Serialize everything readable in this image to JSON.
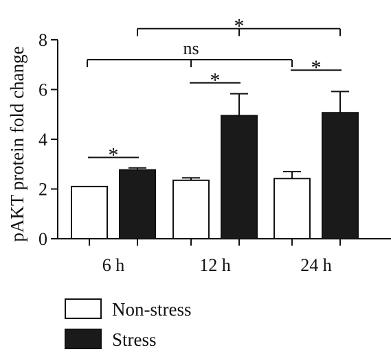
{
  "chart_data": {
    "type": "bar",
    "ylabel": "pAKT protein fold change",
    "xlabel": "",
    "ylim": [
      0,
      8
    ],
    "yticks": [
      0,
      2,
      4,
      6,
      8
    ],
    "grid": false,
    "legend_position": "bottom-left",
    "categories": [
      "6 h",
      "12 h",
      "24 h"
    ],
    "series": [
      {
        "name": "Non-stress",
        "values": [
          2.1,
          2.35,
          2.42
        ],
        "errors": [
          0,
          0.1,
          0.28
        ],
        "color": "#ffffff"
      },
      {
        "name": "Stress",
        "values": [
          2.77,
          4.95,
          5.07
        ],
        "errors": [
          0.08,
          0.88,
          0.85
        ],
        "color": "#1a1a1a"
      }
    ],
    "annotations": [
      {
        "label": "*",
        "type": "bracket",
        "from": "6 h Non-stress",
        "to": "6 h Stress",
        "y": 3.27,
        "ticks": false
      },
      {
        "label": "*",
        "type": "bracket",
        "from": "12 h Non-stress",
        "to": "12 h Stress",
        "y": 6.27,
        "ticks": false
      },
      {
        "label": "*",
        "type": "bracket",
        "from": "24 h Non-stress",
        "to": "24 h Stress",
        "y": 6.78,
        "ticks": false
      },
      {
        "label": "ns",
        "type": "bracket",
        "from": "6 h",
        "to": "24 h Non-stress",
        "mid": "12 h",
        "y": 7.2,
        "ticks": true
      },
      {
        "label": "*",
        "type": "bracket",
        "from": "6 h Stress",
        "to": "24 h Stress",
        "mid": "12 h Stress",
        "y": 8.45,
        "ticks": true
      }
    ]
  }
}
